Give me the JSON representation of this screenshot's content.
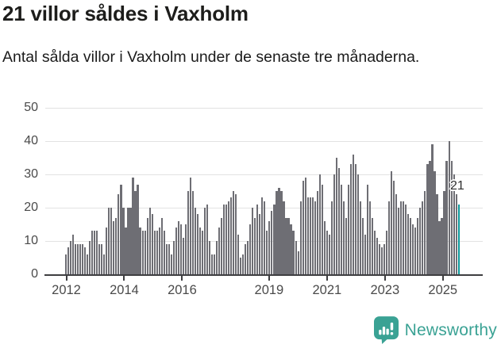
{
  "header": {
    "title": "21 villor såldes i Vaxholm",
    "subtitle": "Antal sålda villor i Vaxholm under de senaste tre månaderna."
  },
  "chart_data": {
    "type": "bar",
    "title": "21 villor såldes i Vaxholm",
    "subtitle": "Antal sålda villor i Vaxholm under de senaste tre månaderna.",
    "start_month": "2012-01",
    "end_month": "2025-09",
    "values": [
      6,
      8,
      10,
      12,
      9,
      9,
      9,
      9,
      8,
      6,
      10,
      13,
      13,
      13,
      9,
      9,
      6,
      14,
      20,
      20,
      16,
      17,
      24,
      27,
      20,
      14,
      20,
      20,
      29,
      25,
      27,
      14,
      13,
      13,
      17,
      20,
      18,
      13,
      13,
      14,
      17,
      13,
      9,
      9,
      6,
      10,
      14,
      16,
      15,
      11,
      15,
      25,
      29,
      25,
      20,
      18,
      14,
      13,
      20,
      21,
      10,
      6,
      6,
      10,
      14,
      17,
      21,
      21,
      22,
      23,
      25,
      24,
      12,
      5,
      6,
      9,
      10,
      15,
      20,
      17,
      21,
      18,
      23,
      22,
      13,
      16,
      19,
      21,
      25,
      26,
      25,
      22,
      17,
      17,
      15,
      13,
      10,
      7,
      22,
      28,
      29,
      23,
      23,
      23,
      22,
      25,
      30,
      27,
      16,
      13,
      12,
      22,
      30,
      35,
      32,
      27,
      22,
      17,
      27,
      33,
      36,
      33,
      30,
      22,
      17,
      12,
      27,
      22,
      17,
      13,
      11,
      9,
      8,
      9,
      13,
      22,
      31,
      28,
      24,
      20,
      22,
      22,
      21,
      18,
      17,
      15,
      14,
      17,
      20,
      22,
      25,
      33,
      34,
      39,
      31,
      24,
      16,
      17,
      25,
      34,
      40,
      34,
      30,
      24,
      21
    ],
    "highlight": {
      "index": 164,
      "value": 21,
      "label": "21"
    },
    "x_ticks": [
      {
        "label": "2012",
        "month_index": 0
      },
      {
        "label": "2014",
        "month_index": 24
      },
      {
        "label": "2016",
        "month_index": 48
      },
      {
        "label": "2019",
        "month_index": 84
      },
      {
        "label": "2021",
        "month_index": 108
      },
      {
        "label": "2023",
        "month_index": 132
      },
      {
        "label": "2025",
        "month_index": 156
      }
    ],
    "y_ticks": [
      0,
      10,
      20,
      30,
      40,
      50
    ],
    "ylim": [
      0,
      50
    ],
    "grid": true,
    "legend": false,
    "colors": {
      "bar": "#6e6e74",
      "highlight": "#0d999b",
      "gridline": "#e2e2e2",
      "axis": "#3e3e41",
      "tick_label": "#4a4a4a"
    }
  },
  "footer": {
    "brand": "Newsworthy",
    "brand_color": "#3aa294",
    "logo_icon": "bar-chart-speech-bubble"
  }
}
